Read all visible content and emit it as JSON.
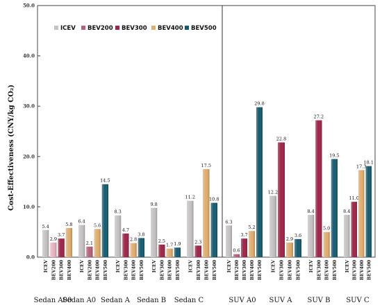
{
  "chart_data": {
    "type": "bar",
    "ylabel": "Cost-Effectiveness (CNY/kg CO₂)",
    "ylim": [
      0,
      50
    ],
    "yticks": [
      "0.0",
      "10.0",
      "20.0",
      "30.0",
      "40.0",
      "50.0"
    ],
    "grid": false,
    "legend_position": "top-left",
    "categories": [
      "Sedan A00",
      "Sedan A0",
      "Sedan A",
      "Sedan B",
      "Sedan C",
      "SUV A0",
      "SUV A",
      "SUV B",
      "SUV C"
    ],
    "group_series": [
      [
        "ICEV",
        "BEV200",
        "BEV300",
        "BEV400"
      ],
      [
        "ICEV",
        "BEV200",
        "BEV400",
        "BEV500"
      ],
      [
        "ICEV",
        "BEV300",
        "BEV400",
        "BEV500"
      ],
      [
        "ICEV",
        "BEV300",
        "BEV400",
        "BEV500"
      ],
      [
        "ICEV",
        "BEV300",
        "BEV400",
        "BEV500"
      ],
      [
        "ICEV",
        "BEV200",
        "BEV300",
        "BEV400",
        "BEV500"
      ],
      [
        "ICEV",
        "BEV300",
        "BEV400",
        "BEV500"
      ],
      [
        "ICEV",
        "BEV300",
        "BEV400",
        "BEV500"
      ],
      [
        "ICEV",
        "BEV300",
        "BEV400",
        "BEV500"
      ]
    ],
    "group_values": [
      [
        5.4,
        2.9,
        3.7,
        5.8
      ],
      [
        6.4,
        2.1,
        5.6,
        14.5
      ],
      [
        8.3,
        4.7,
        2.8,
        3.8
      ],
      [
        9.8,
        2.5,
        1.7,
        1.9
      ],
      [
        11.2,
        2.3,
        17.5,
        10.8
      ],
      [
        6.3,
        0.6,
        3.7,
        5.2,
        29.8
      ],
      [
        12.2,
        22.8,
        2.9,
        3.6
      ],
      [
        8.4,
        27.2,
        5.0,
        19.5
      ],
      [
        8.4,
        11.0,
        17.3,
        18.1
      ]
    ],
    "series": [
      {
        "name": "ICEV",
        "color": "#c6c2c4"
      },
      {
        "name": "BEV200",
        "color": "#b85e78"
      },
      {
        "name": "BEV300",
        "color": "#9e2346"
      },
      {
        "name": "BEV400",
        "color": "#e1ad6c"
      },
      {
        "name": "BEV500",
        "color": "#145a70"
      }
    ],
    "sedan_bev200_color": "#ebb1c0"
  }
}
